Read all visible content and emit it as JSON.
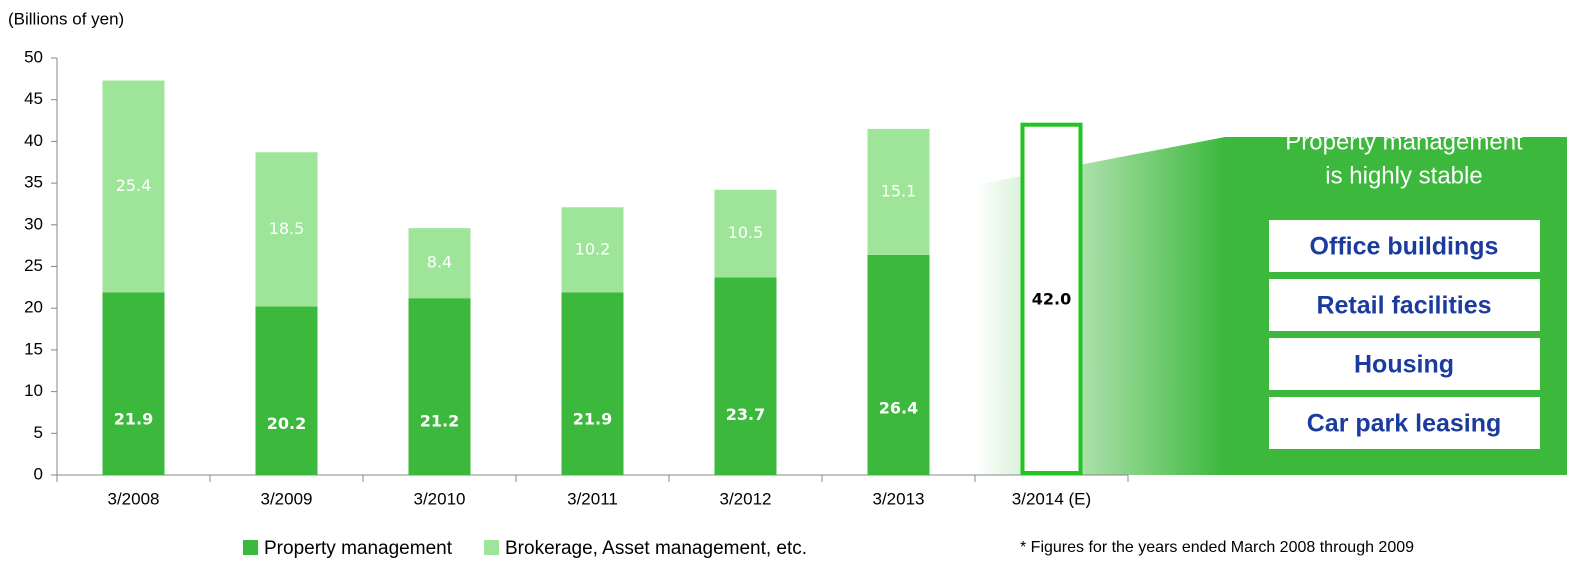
{
  "chart_data": {
    "type": "stacked_bar",
    "y_label": "(Billions of yen)",
    "categories": [
      "3/2008",
      "3/2009",
      "3/2010",
      "3/2011",
      "3/2012",
      "3/2013",
      "3/2014 (E)"
    ],
    "series": [
      {
        "name": "Property management",
        "color": "#3cb83c",
        "values": [
          21.9,
          20.2,
          21.2,
          21.9,
          23.7,
          26.4,
          null
        ]
      },
      {
        "name": "Brokerage, Asset management, etc.",
        "color": "#9ee59a",
        "values": [
          25.4,
          18.5,
          8.4,
          10.2,
          10.5,
          15.1,
          null
        ]
      }
    ],
    "estimate": {
      "color": "#22c322",
      "values": [
        null,
        null,
        null,
        null,
        null,
        null,
        42
      ],
      "value_labels": [
        null,
        null,
        null,
        null,
        null,
        null,
        "42.0"
      ]
    },
    "ylim": [
      0,
      50
    ],
    "yticks": [
      0,
      5,
      10,
      15,
      20,
      25,
      30,
      35,
      40,
      45,
      50
    ],
    "callout_title": [
      "Property management",
      "is highly stable"
    ],
    "callout_items": [
      "Office buildings",
      "Retail facilities",
      "Housing",
      "Car park leasing"
    ],
    "footnote": "* Figures for the years ended March 2008 through 2009"
  }
}
